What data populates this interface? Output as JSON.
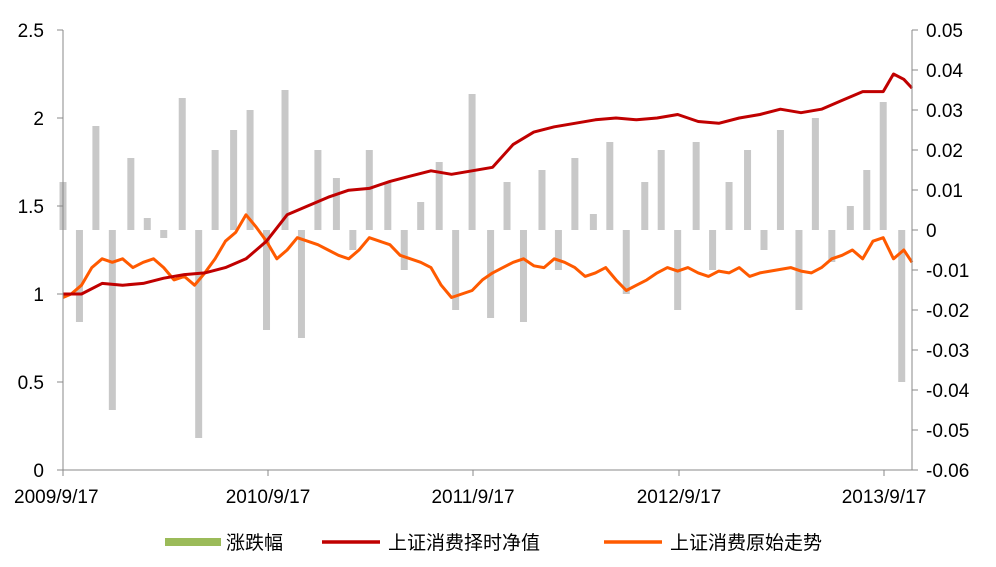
{
  "chart_data": {
    "type": "line",
    "x_tick_labels": [
      "2009/9/17",
      "2010/9/17",
      "2011/9/17",
      "2012/9/17",
      "2013/9/17"
    ],
    "y_left": {
      "ylim": [
        0,
        2.5
      ],
      "tick_labels": [
        "0",
        "0.5",
        "1",
        "1.5",
        "2",
        "2.5"
      ]
    },
    "y_right": {
      "ylim": [
        -0.06,
        0.05
      ],
      "tick_labels": [
        "-0.06",
        "-0.05",
        "-0.04",
        "-0.03",
        "-0.02",
        "-0.01",
        "0",
        "0.01",
        "0.02",
        "0.03",
        "0.04",
        "0.05"
      ]
    },
    "grid": false,
    "legend_position": "bottom",
    "legend": [
      "涨跌幅",
      "上证消费择时净值",
      "上证消费原始走势"
    ],
    "colors": {
      "bars": "#c8c8c8",
      "bars_legend": "#9bbb59",
      "timing": "#c00000",
      "original": "#ff5a00"
    },
    "series": [
      {
        "name": "涨跌幅",
        "axis": "right",
        "kind": "bar",
        "x": [
          2009.71,
          2009.79,
          2009.87,
          2009.95,
          2010.04,
          2010.12,
          2010.2,
          2010.29,
          2010.37,
          2010.45,
          2010.54,
          2010.62,
          2010.7,
          2010.79,
          2010.87,
          2010.95,
          2011.04,
          2011.12,
          2011.2,
          2011.29,
          2011.37,
          2011.45,
          2011.54,
          2011.62,
          2011.7,
          2011.79,
          2011.87,
          2011.95,
          2012.04,
          2012.12,
          2012.2,
          2012.29,
          2012.37,
          2012.45,
          2012.54,
          2012.62,
          2012.7,
          2012.79,
          2012.87,
          2012.95,
          2013.04,
          2013.12,
          2013.2,
          2013.29,
          2013.37,
          2013.45,
          2013.54,
          2013.62,
          2013.7,
          2013.79
        ],
        "values": [
          0.012,
          -0.023,
          0.026,
          -0.045,
          0.018,
          0.003,
          -0.002,
          0.033,
          -0.052,
          0.02,
          0.025,
          0.03,
          -0.025,
          0.035,
          -0.027,
          0.02,
          0.013,
          -0.005,
          0.02,
          0.012,
          -0.01,
          0.007,
          0.017,
          -0.02,
          0.034,
          -0.022,
          0.012,
          -0.023,
          0.015,
          -0.01,
          0.018,
          0.004,
          0.022,
          -0.016,
          0.012,
          0.02,
          -0.02,
          0.022,
          -0.01,
          0.012,
          0.02,
          -0.005,
          0.025,
          -0.02,
          0.028,
          -0.008,
          0.006,
          0.015,
          0.032,
          -0.038
        ]
      },
      {
        "name": "上证消费择时净值",
        "axis": "left",
        "kind": "line",
        "x": [
          2009.71,
          2009.8,
          2009.9,
          2010.0,
          2010.1,
          2010.2,
          2010.3,
          2010.4,
          2010.5,
          2010.6,
          2010.7,
          2010.8,
          2010.9,
          2011.0,
          2011.1,
          2011.2,
          2011.3,
          2011.4,
          2011.5,
          2011.6,
          2011.7,
          2011.8,
          2011.9,
          2012.0,
          2012.1,
          2012.2,
          2012.3,
          2012.4,
          2012.5,
          2012.6,
          2012.7,
          2012.8,
          2012.9,
          2013.0,
          2013.1,
          2013.2,
          2013.3,
          2013.4,
          2013.5,
          2013.6,
          2013.7,
          2013.75,
          2013.8,
          2013.84
        ],
        "values": [
          1.0,
          1.0,
          1.06,
          1.05,
          1.06,
          1.09,
          1.11,
          1.12,
          1.15,
          1.2,
          1.3,
          1.45,
          1.5,
          1.55,
          1.59,
          1.6,
          1.64,
          1.67,
          1.7,
          1.68,
          1.7,
          1.72,
          1.85,
          1.92,
          1.95,
          1.97,
          1.99,
          2.0,
          1.99,
          2.0,
          2.02,
          1.98,
          1.97,
          2.0,
          2.02,
          2.05,
          2.03,
          2.05,
          2.1,
          2.15,
          2.15,
          2.25,
          2.22,
          2.17
        ]
      },
      {
        "name": "上证消费原始走势",
        "axis": "left",
        "kind": "line",
        "x": [
          2009.71,
          2009.75,
          2009.8,
          2009.85,
          2009.9,
          2009.95,
          2010.0,
          2010.05,
          2010.1,
          2010.15,
          2010.2,
          2010.25,
          2010.3,
          2010.35,
          2010.4,
          2010.45,
          2010.5,
          2010.55,
          2010.6,
          2010.65,
          2010.7,
          2010.75,
          2010.8,
          2010.85,
          2010.9,
          2010.95,
          2011.0,
          2011.05,
          2011.1,
          2011.15,
          2011.2,
          2011.25,
          2011.3,
          2011.35,
          2011.4,
          2011.45,
          2011.5,
          2011.55,
          2011.6,
          2011.65,
          2011.7,
          2011.75,
          2011.8,
          2011.85,
          2011.9,
          2011.95,
          2012.0,
          2012.05,
          2012.1,
          2012.15,
          2012.2,
          2012.25,
          2012.3,
          2012.35,
          2012.4,
          2012.45,
          2012.5,
          2012.55,
          2012.6,
          2012.65,
          2012.7,
          2012.75,
          2012.8,
          2012.85,
          2012.9,
          2012.95,
          2013.0,
          2013.05,
          2013.1,
          2013.15,
          2013.2,
          2013.25,
          2013.3,
          2013.35,
          2013.4,
          2013.45,
          2013.5,
          2013.55,
          2013.6,
          2013.65,
          2013.7,
          2013.75,
          2013.8,
          2013.84
        ],
        "values": [
          0.98,
          1.0,
          1.05,
          1.15,
          1.2,
          1.18,
          1.2,
          1.15,
          1.18,
          1.2,
          1.15,
          1.08,
          1.1,
          1.05,
          1.12,
          1.2,
          1.3,
          1.35,
          1.45,
          1.38,
          1.3,
          1.2,
          1.25,
          1.32,
          1.3,
          1.28,
          1.25,
          1.22,
          1.2,
          1.25,
          1.32,
          1.3,
          1.28,
          1.22,
          1.2,
          1.18,
          1.15,
          1.05,
          0.98,
          1.0,
          1.02,
          1.08,
          1.12,
          1.15,
          1.18,
          1.2,
          1.16,
          1.15,
          1.2,
          1.18,
          1.15,
          1.1,
          1.12,
          1.15,
          1.08,
          1.02,
          1.05,
          1.08,
          1.12,
          1.15,
          1.13,
          1.15,
          1.12,
          1.1,
          1.13,
          1.12,
          1.15,
          1.1,
          1.12,
          1.13,
          1.14,
          1.15,
          1.13,
          1.12,
          1.15,
          1.2,
          1.22,
          1.25,
          1.2,
          1.3,
          1.32,
          1.2,
          1.25,
          1.18
        ]
      }
    ]
  }
}
